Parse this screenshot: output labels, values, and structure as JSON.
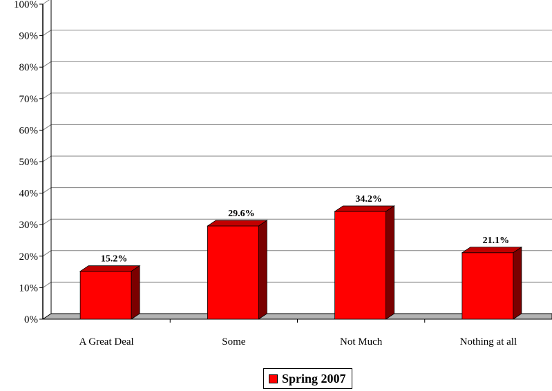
{
  "chart_data": {
    "type": "bar",
    "categories": [
      "A Great Deal",
      "Some",
      "Not Much",
      "Nothing at all"
    ],
    "series": [
      {
        "name": "Spring 2007",
        "values": [
          15.2,
          29.6,
          34.2,
          21.1
        ]
      }
    ],
    "data_labels": [
      "15.2%",
      "29.6%",
      "34.2%",
      "21.1%"
    ],
    "ylim": [
      0,
      100
    ],
    "y_ticks": [
      "0%",
      "10%",
      "20%",
      "30%",
      "40%",
      "50%",
      "60%",
      "70%",
      "80%",
      "90%",
      "100%"
    ],
    "grid": true,
    "style": "3d",
    "legend_position": "bottom-center",
    "colors": {
      "bar_front": "#ff0000",
      "bar_top": "#c00000",
      "bar_side": "#7a0000",
      "floor": "#b3b3b3",
      "grid": "#808080"
    }
  },
  "legend": {
    "label": "Spring 2007"
  }
}
